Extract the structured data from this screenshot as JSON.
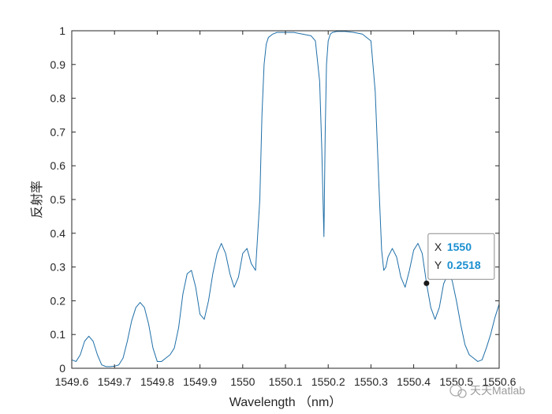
{
  "chart_data": {
    "type": "line",
    "title": "",
    "xlabel": "Wavelength （nm）",
    "ylabel": "反射率",
    "xlim": [
      1549.6,
      1550.6
    ],
    "ylim": [
      0,
      1
    ],
    "xticks": [
      {
        "value": 1549.6,
        "label": "1549.6"
      },
      {
        "value": 1549.7,
        "label": "1549.7"
      },
      {
        "value": 1549.8,
        "label": "1549.8"
      },
      {
        "value": 1549.9,
        "label": "1549.9"
      },
      {
        "value": 1550.0,
        "label": "1550"
      },
      {
        "value": 1550.1,
        "label": "1550.1"
      },
      {
        "value": 1550.2,
        "label": "1550.2"
      },
      {
        "value": 1550.3,
        "label": "1550.3"
      },
      {
        "value": 1550.4,
        "label": "1550.4"
      },
      {
        "value": 1550.5,
        "label": "1550.5"
      },
      {
        "value": 1550.6,
        "label": "1550.6"
      }
    ],
    "yticks": [
      {
        "value": 0,
        "label": "0"
      },
      {
        "value": 0.1,
        "label": "0.1"
      },
      {
        "value": 0.2,
        "label": "0.2"
      },
      {
        "value": 0.3,
        "label": "0.3"
      },
      {
        "value": 0.4,
        "label": "0.4"
      },
      {
        "value": 0.5,
        "label": "0.5"
      },
      {
        "value": 0.6,
        "label": "0.6"
      },
      {
        "value": 0.7,
        "label": "0.7"
      },
      {
        "value": 0.8,
        "label": "0.8"
      },
      {
        "value": 0.9,
        "label": "0.9"
      },
      {
        "value": 1,
        "label": "1"
      }
    ],
    "grid": false,
    "line_color": "#1f6fa8",
    "series": [
      {
        "x": [
          1549.6,
          1549.61,
          1549.62,
          1549.63,
          1549.64,
          1549.65,
          1549.66,
          1549.67,
          1549.68,
          1549.69,
          1549.7,
          1549.71,
          1549.72,
          1549.73,
          1549.74,
          1549.75,
          1549.76,
          1549.77,
          1549.78,
          1549.79,
          1549.8,
          1549.81,
          1549.82,
          1549.83,
          1549.84,
          1549.85,
          1549.86,
          1549.87,
          1549.88,
          1549.89,
          1549.9,
          1549.91,
          1549.92,
          1549.93,
          1549.94,
          1549.95,
          1549.96,
          1549.97,
          1549.98,
          1549.99,
          1550.0,
          1550.01,
          1550.02,
          1550.03,
          1550.04,
          1550.045,
          1550.05,
          1550.055,
          1550.06,
          1550.07,
          1550.08,
          1550.09,
          1550.1,
          1550.12,
          1550.14,
          1550.16,
          1550.17,
          1550.18,
          1550.185,
          1550.19,
          1550.193,
          1550.196,
          1550.2,
          1550.205,
          1550.21,
          1550.22,
          1550.24,
          1550.26,
          1550.28,
          1550.3,
          1550.31,
          1550.32,
          1550.325,
          1550.33,
          1550.335,
          1550.34,
          1550.35,
          1550.36,
          1550.37,
          1550.38,
          1550.39,
          1550.4,
          1550.41,
          1550.42,
          1550.43,
          1550.44,
          1550.45,
          1550.46,
          1550.47,
          1550.48,
          1550.49,
          1550.5,
          1550.51,
          1550.52,
          1550.53,
          1550.54,
          1550.55,
          1550.56,
          1550.57,
          1550.58,
          1550.59,
          1550.6
        ],
        "y": [
          0.025,
          0.02,
          0.04,
          0.08,
          0.095,
          0.08,
          0.04,
          0.01,
          0.005,
          0.005,
          0.006,
          0.01,
          0.03,
          0.08,
          0.14,
          0.18,
          0.195,
          0.18,
          0.13,
          0.06,
          0.02,
          0.02,
          0.03,
          0.04,
          0.06,
          0.12,
          0.22,
          0.28,
          0.29,
          0.24,
          0.16,
          0.145,
          0.2,
          0.28,
          0.34,
          0.37,
          0.34,
          0.28,
          0.24,
          0.27,
          0.34,
          0.355,
          0.31,
          0.29,
          0.5,
          0.75,
          0.9,
          0.96,
          0.98,
          0.99,
          0.995,
          0.995,
          0.995,
          0.995,
          0.99,
          0.985,
          0.97,
          0.85,
          0.65,
          0.39,
          0.7,
          0.9,
          0.97,
          0.99,
          0.995,
          0.998,
          0.998,
          0.995,
          0.99,
          0.97,
          0.82,
          0.5,
          0.35,
          0.29,
          0.3,
          0.33,
          0.355,
          0.33,
          0.27,
          0.24,
          0.29,
          0.35,
          0.37,
          0.34,
          0.2518,
          0.18,
          0.145,
          0.18,
          0.25,
          0.28,
          0.26,
          0.2,
          0.13,
          0.07,
          0.04,
          0.03,
          0.02,
          0.025,
          0.06,
          0.1,
          0.15,
          0.19
        ]
      }
    ],
    "datatip": {
      "x": 1550.43,
      "y": 0.2518,
      "x_label": "X",
      "x_value": "1550",
      "y_label": "Y",
      "y_value": "0.2518",
      "value_color": "#1a8fd0"
    },
    "watermark": "天天Matlab"
  }
}
